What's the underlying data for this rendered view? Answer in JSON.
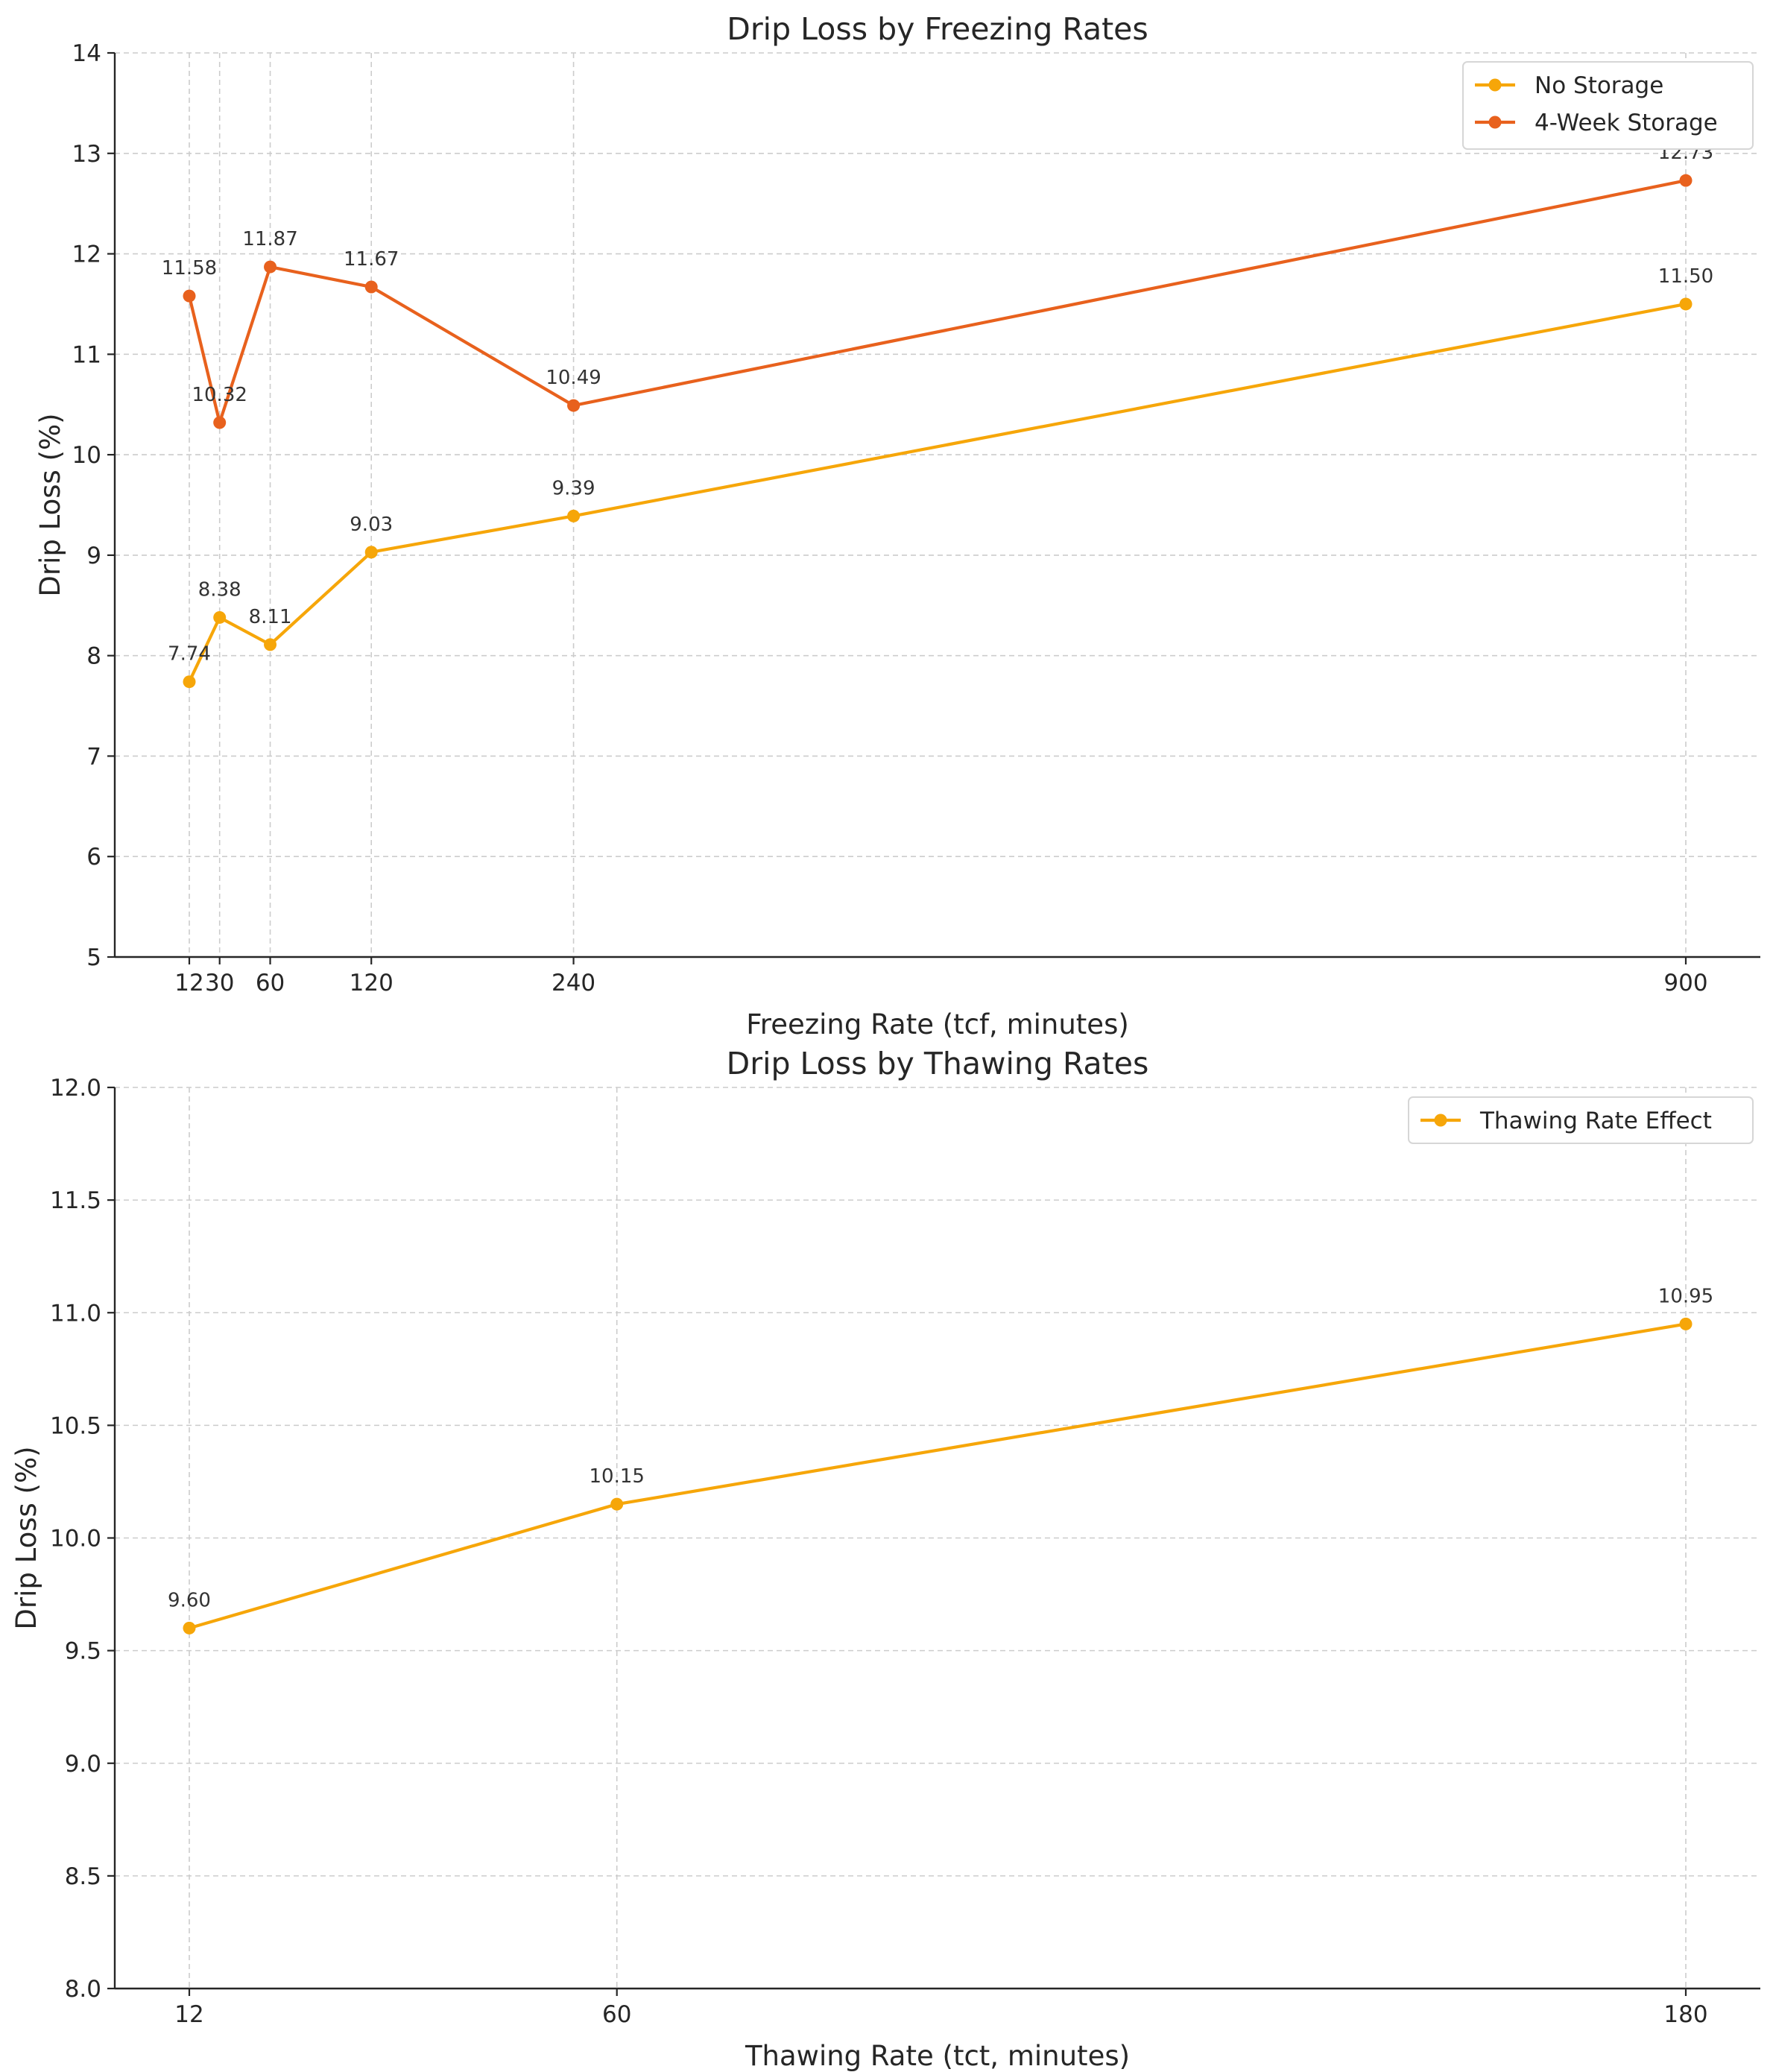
{
  "chart_data": [
    {
      "type": "line",
      "title": "Drip Loss by Freezing Rates",
      "xlabel": "Freezing Rate (tcf, minutes)",
      "ylabel": "Drip Loss (%)",
      "x": [
        12,
        30,
        60,
        120,
        240,
        900
      ],
      "x_ticks": [
        12,
        30,
        60,
        120,
        240,
        900
      ],
      "x_tick_labels": [
        "12",
        "30",
        "60",
        "120",
        "240",
        "900"
      ],
      "ylim": [
        5,
        14
      ],
      "y_ticks": [
        5,
        6,
        7,
        8,
        9,
        10,
        11,
        12,
        13,
        14
      ],
      "y_tick_labels": [
        "5",
        "6",
        "7",
        "8",
        "9",
        "10",
        "11",
        "12",
        "13",
        "14"
      ],
      "grid": true,
      "legend_position": "top-right",
      "series": [
        {
          "name": "No Storage",
          "color": "#F6A609",
          "values": [
            7.74,
            8.38,
            8.11,
            9.03,
            9.39,
            11.5
          ],
          "labels": [
            "7.74",
            "8.38",
            "8.11",
            "9.03",
            "9.39",
            "11.50"
          ]
        },
        {
          "name": "4-Week Storage",
          "color": "#E8611D",
          "values": [
            11.58,
            10.32,
            11.87,
            11.67,
            10.49,
            12.73
          ],
          "labels": [
            "11.58",
            "10.32",
            "11.87",
            "11.67",
            "10.49",
            "12.73"
          ]
        }
      ]
    },
    {
      "type": "line",
      "title": "Drip Loss by Thawing Rates",
      "xlabel": "Thawing Rate (tct, minutes)",
      "ylabel": "Drip Loss (%)",
      "x": [
        12,
        60,
        180
      ],
      "x_ticks": [
        12,
        60,
        180
      ],
      "x_tick_labels": [
        "12",
        "60",
        "180"
      ],
      "ylim": [
        8.0,
        12.0
      ],
      "y_ticks": [
        8.0,
        8.5,
        9.0,
        9.5,
        10.0,
        10.5,
        11.0,
        11.5,
        12.0
      ],
      "y_tick_labels": [
        "8.0",
        "8.5",
        "9.0",
        "9.5",
        "10.0",
        "10.5",
        "11.0",
        "11.5",
        "12.0"
      ],
      "grid": true,
      "legend_position": "top-right",
      "series": [
        {
          "name": "Thawing Rate Effect",
          "color": "#F6A609",
          "values": [
            9.6,
            10.15,
            10.95
          ],
          "labels": [
            "9.60",
            "10.15",
            "10.95"
          ]
        }
      ]
    }
  ]
}
